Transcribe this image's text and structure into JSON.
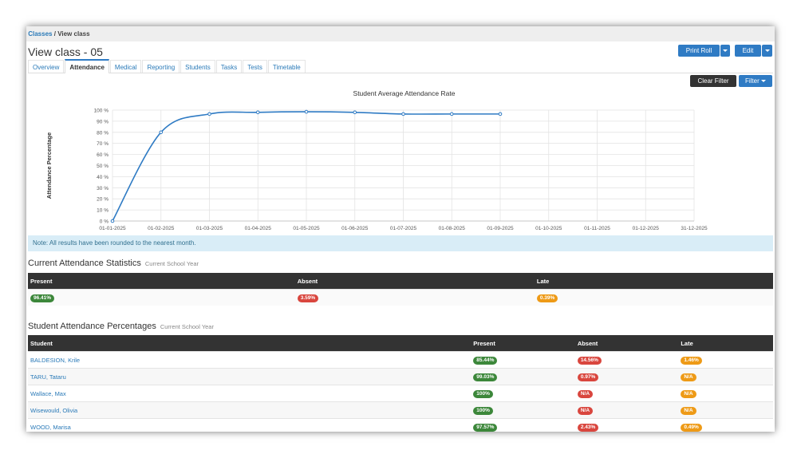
{
  "breadcrumb": {
    "items": [
      "Classes",
      "View class"
    ],
    "separator": "/"
  },
  "page_title": "View class - 05",
  "buttons": {
    "print_roll": "Print Roll",
    "edit": "Edit",
    "clear_filter": "Clear Filter",
    "filter": "Filter"
  },
  "tabs": [
    "Overview",
    "Attendance",
    "Medical",
    "Reporting",
    "Students",
    "Tasks",
    "Tests",
    "Timetable"
  ],
  "active_tab": 1,
  "chart_data": {
    "type": "line",
    "title": "Student Average Attendance Rate",
    "y_label": "Attendance Percentage",
    "categories": [
      "01-01-2025",
      "01-02-2025",
      "01-03-2025",
      "01-04-2025",
      "01-05-2025",
      "01-06-2025",
      "01-07-2025",
      "01-08-2025",
      "01-09-2025",
      "01-10-2025",
      "01-11-2025",
      "01-12-2025",
      "31-12-2025"
    ],
    "values": [
      0,
      80,
      96.5,
      98,
      98.5,
      98,
      96.5,
      96.5,
      96.5,
      null,
      null,
      null,
      null
    ],
    "color": "#2f7bc4",
    "ylim": [
      0,
      100
    ],
    "yticks": [
      {
        "value": 0,
        "label": "0 %"
      },
      {
        "value": 10,
        "label": "10 %"
      },
      {
        "value": 20,
        "label": "20 %"
      },
      {
        "value": 30,
        "label": "30 %"
      },
      {
        "value": 40,
        "label": "40 %"
      },
      {
        "value": 50,
        "label": "50 %"
      },
      {
        "value": 60,
        "label": "60 %"
      },
      {
        "value": 70,
        "label": "70 %"
      },
      {
        "value": 80,
        "label": "80 %"
      },
      {
        "value": 90,
        "label": "90 %"
      },
      {
        "value": 100,
        "label": "100 %"
      }
    ],
    "grid": true
  },
  "note": "Note: All results have been rounded to the nearest month.",
  "statistics": {
    "title": "Current Attendance Statistics",
    "subtitle": "Current School Year",
    "headers": [
      "Present",
      "Absent",
      "Late"
    ],
    "row": [
      "96.41%",
      "3.59%",
      "0.39%"
    ]
  },
  "students": {
    "title": "Student Attendance Percentages",
    "subtitle": "Current School Year",
    "headers": [
      "Student",
      "Present",
      "Absent",
      "Late"
    ],
    "rows": [
      [
        "BALDESION, Krile",
        "85.44%",
        "14.56%",
        "1.46%"
      ],
      [
        "TARU, Tataru",
        "99.03%",
        "0.97%",
        "N/A"
      ],
      [
        "Wallace, Max",
        "100%",
        "N/A",
        "N/A"
      ],
      [
        "Wisewould, Olivia",
        "100%",
        "N/A",
        "N/A"
      ],
      [
        "WOOD, Marisa",
        "97.57%",
        "2.43%",
        "0.49%"
      ]
    ]
  }
}
